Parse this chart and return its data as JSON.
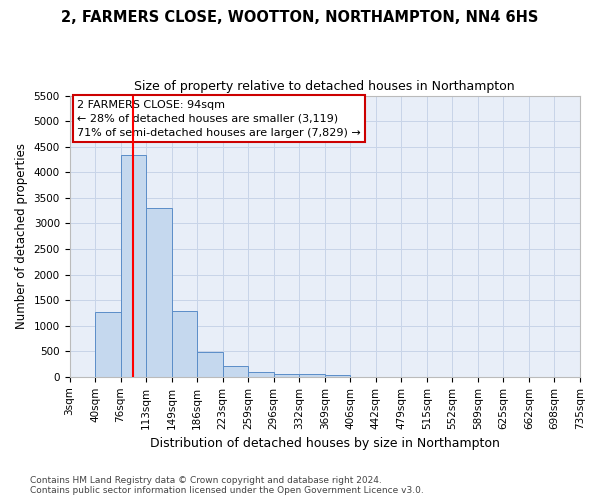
{
  "title": "2, FARMERS CLOSE, WOOTTON, NORTHAMPTON, NN4 6HS",
  "subtitle": "Size of property relative to detached houses in Northampton",
  "xlabel": "Distribution of detached houses by size in Northampton",
  "ylabel": "Number of detached properties",
  "footer": "Contains HM Land Registry data © Crown copyright and database right 2024.\nContains public sector information licensed under the Open Government Licence v3.0.",
  "bin_labels": [
    "3sqm",
    "40sqm",
    "76sqm",
    "113sqm",
    "149sqm",
    "186sqm",
    "223sqm",
    "259sqm",
    "296sqm",
    "332sqm",
    "369sqm",
    "406sqm",
    "442sqm",
    "479sqm",
    "515sqm",
    "552sqm",
    "589sqm",
    "625sqm",
    "662sqm",
    "698sqm",
    "735sqm"
  ],
  "bar_values": [
    0,
    1270,
    4330,
    3300,
    1280,
    490,
    215,
    90,
    60,
    55,
    45,
    0,
    0,
    0,
    0,
    0,
    0,
    0,
    0,
    0
  ],
  "bar_color": "#c5d8ee",
  "bar_edge_color": "#5b8dc8",
  "grid_color": "#c8d4e8",
  "background_color": "#e8eef8",
  "red_line_x": 2.49,
  "annotation_text": "2 FARMERS CLOSE: 94sqm\n← 28% of detached houses are smaller (3,119)\n71% of semi-detached houses are larger (7,829) →",
  "annotation_box_color": "#cc0000",
  "ylim": [
    0,
    5500
  ],
  "yticks": [
    0,
    500,
    1000,
    1500,
    2000,
    2500,
    3000,
    3500,
    4000,
    4500,
    5000,
    5500
  ],
  "title_fontsize": 10.5,
  "subtitle_fontsize": 9,
  "ylabel_fontsize": 8.5,
  "xlabel_fontsize": 9,
  "tick_fontsize": 7.5,
  "ann_fontsize": 8,
  "footer_fontsize": 6.5
}
